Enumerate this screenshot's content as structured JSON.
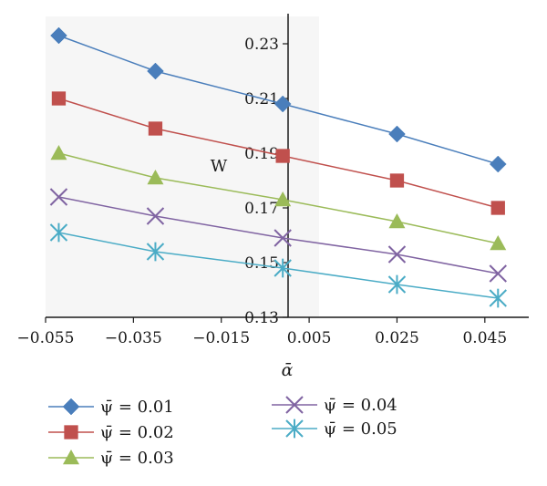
{
  "chart_data": {
    "type": "line",
    "xlabel": "ᾱ",
    "ylabel": "W",
    "x": [
      -0.052,
      -0.03,
      -0.001,
      0.025,
      0.048
    ],
    "xlim": [
      -0.055,
      0.055
    ],
    "ylim": [
      0.13,
      0.24
    ],
    "x_ticks": [
      -0.055,
      -0.035,
      -0.015,
      0.005,
      0.025,
      0.045
    ],
    "x_tick_labels": [
      "−0.055",
      "−0.035",
      "−0.015",
      "0.005",
      "0.025",
      "0.045"
    ],
    "y_ticks": [
      0.13,
      0.15,
      0.17,
      0.19,
      0.21,
      0.23
    ],
    "y_tick_labels": [
      "0.13",
      "0.15",
      "0.17",
      "0.19",
      "0.21",
      "0.23"
    ],
    "grid": false,
    "legend_position": "bottom",
    "series": [
      {
        "name": "ψ̄ = 0.01",
        "marker": "diamond",
        "color": "#4a7ebb",
        "values": [
          0.233,
          0.22,
          0.208,
          0.197,
          0.186
        ]
      },
      {
        "name": "ψ̄ = 0.02",
        "marker": "square",
        "color": "#c0504d",
        "values": [
          0.21,
          0.199,
          0.189,
          0.18,
          0.17
        ]
      },
      {
        "name": "ψ̄ = 0.03",
        "marker": "triangle",
        "color": "#9bbb59",
        "values": [
          0.19,
          0.181,
          0.173,
          0.165,
          0.157
        ]
      },
      {
        "name": "ψ̄ = 0.04",
        "marker": "x",
        "color": "#8064a2",
        "values": [
          0.174,
          0.167,
          0.159,
          0.153,
          0.146
        ]
      },
      {
        "name": "ψ̄ = 0.05",
        "marker": "asterisk",
        "color": "#4bacc6",
        "values": [
          0.161,
          0.154,
          0.148,
          0.142,
          0.137
        ]
      }
    ]
  }
}
